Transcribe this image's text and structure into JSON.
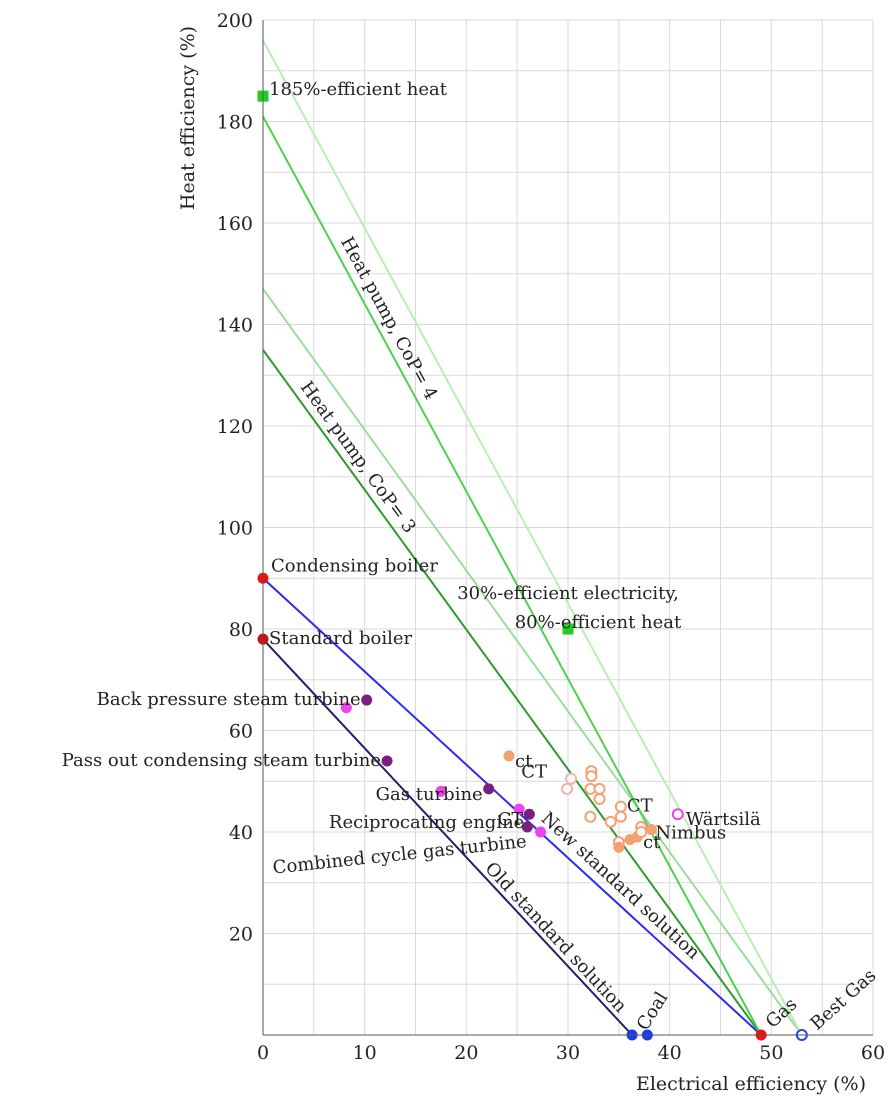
{
  "chart_data": {
    "type": "scatter",
    "xlabel": "Electrical efficiency (%)",
    "ylabel": "Heat efficiency (%)",
    "xlim": [
      0,
      60
    ],
    "ylim": [
      0,
      200
    ],
    "x_ticks": [
      0,
      10,
      20,
      30,
      40,
      50,
      60
    ],
    "y_ticks": [
      20,
      40,
      60,
      80,
      100,
      120,
      140,
      160,
      180,
      200
    ],
    "grid": true,
    "lines": [
      {
        "label": "Old standard solution",
        "color": "#20206a",
        "x1": 0,
        "y1": 78,
        "x2": 36.3,
        "y2": 0
      },
      {
        "label": "New standard solution",
        "color": "#2b2bf0",
        "x1": 0,
        "y1": 90,
        "x2": 49,
        "y2": 0
      },
      {
        "label": "Heat pump, CoP= 3",
        "color": "#2e9a2e",
        "x1": 0,
        "y1": 135,
        "x2": 49,
        "y2": 0
      },
      {
        "label": "",
        "color": "#9ddc9d",
        "x1": 0,
        "y1": 147,
        "x2": 53,
        "y2": 0
      },
      {
        "label": "Heat pump, CoP= 4",
        "color": "#4fd04f",
        "x1": 0,
        "y1": 181,
        "x2": 49,
        "y2": 0
      },
      {
        "label": "",
        "color": "#b9efb2",
        "x1": 0,
        "y1": 196,
        "x2": 53,
        "y2": 0
      }
    ],
    "points": [
      {
        "label": "Condensing boiler",
        "x": 0,
        "y": 90,
        "color": "#ee1111",
        "shape": "circle"
      },
      {
        "label": "Standard boiler",
        "x": 0,
        "y": 78,
        "color": "#cc1111",
        "shape": "circle"
      },
      {
        "label": "Gas",
        "x": 49,
        "y": 0,
        "color": "#ee1111",
        "shape": "circle"
      },
      {
        "label": "Best Gas",
        "x": 53,
        "y": 0,
        "color": "#2244ee",
        "shape": "open-circle"
      },
      {
        "label": "Coal",
        "x": 36.3,
        "y": 0,
        "color": "#1a3be8",
        "shape": "circle"
      },
      {
        "label": "",
        "x": 37.8,
        "y": 0,
        "color": "#1a3be8",
        "shape": "circle"
      },
      {
        "label": "185%-efficient heat",
        "x": 0,
        "y": 185,
        "color": "#22cc22",
        "shape": "square"
      },
      {
        "label": "30%-efficient electricity,\n80%-efficient heat",
        "x": 30,
        "y": 80,
        "color": "#22cc22",
        "shape": "square"
      },
      {
        "label": "Back pressure steam turbine",
        "x": 10.2,
        "y": 66,
        "color": "#7a1f80",
        "shape": "circle"
      },
      {
        "label": "",
        "x": 8.2,
        "y": 64.5,
        "color": "#ee44ee",
        "shape": "circle"
      },
      {
        "label": "Pass out condensing steam turbine",
        "x": 12.2,
        "y": 54,
        "color": "#7a1f80",
        "shape": "circle"
      },
      {
        "label": "Gas turbine",
        "x": 22.2,
        "y": 48.5,
        "color": "#7a1f80",
        "shape": "circle"
      },
      {
        "label": "",
        "x": 17.5,
        "y": 48,
        "color": "#ee44ee",
        "shape": "circle"
      },
      {
        "label": "Reciprocating engine",
        "x": 26,
        "y": 41,
        "color": "#7a1f80",
        "shape": "circle"
      },
      {
        "label": "CT",
        "x": 26.2,
        "y": 43.5,
        "color": "#7a1f80",
        "shape": "circle"
      },
      {
        "label": "",
        "x": 25.2,
        "y": 44.5,
        "color": "#ee44ee",
        "shape": "circle"
      },
      {
        "label": "Combined cycle gas turbine",
        "x": 27.3,
        "y": 40,
        "color": "#ee44ee",
        "shape": "circle"
      },
      {
        "label": "Wärtsilä",
        "x": 40.8,
        "y": 43.5,
        "color": "#ee44ee",
        "shape": "open-circle"
      },
      {
        "label": "ct",
        "x": 24.2,
        "y": 55,
        "color": "#f4a070",
        "shape": "circle"
      },
      {
        "label": "CT",
        "x": 30.3,
        "y": 50.5,
        "color": "#f5b0b0",
        "shape": "open-circle"
      },
      {
        "label": "",
        "x": 29.9,
        "y": 48.5,
        "color": "#f5b0b0",
        "shape": "open-circle"
      },
      {
        "label": "",
        "x": 32.3,
        "y": 52,
        "color": "#f4a070",
        "shape": "open-circle"
      },
      {
        "label": "",
        "x": 32.3,
        "y": 51,
        "color": "#f4a070",
        "shape": "open-circle"
      },
      {
        "label": "",
        "x": 32.2,
        "y": 48.5,
        "color": "#f4a070",
        "shape": "open-circle"
      },
      {
        "label": "",
        "x": 33.1,
        "y": 48.5,
        "color": "#f4a070",
        "shape": "open-circle"
      },
      {
        "label": "",
        "x": 33.1,
        "y": 46.5,
        "color": "#f4a070",
        "shape": "open-circle"
      },
      {
        "label": "",
        "x": 32.2,
        "y": 43,
        "color": "#f4a070",
        "shape": "open-circle"
      },
      {
        "label": "",
        "x": 34.2,
        "y": 42,
        "color": "#f4a070",
        "shape": "open-circle"
      },
      {
        "label": "CT",
        "x": 35.2,
        "y": 45,
        "color": "#f4a070",
        "shape": "open-circle"
      },
      {
        "label": "",
        "x": 35.2,
        "y": 43,
        "color": "#f4a070",
        "shape": "open-circle"
      },
      {
        "label": "",
        "x": 35,
        "y": 38,
        "color": "#f4a070",
        "shape": "open-circle"
      },
      {
        "label": "",
        "x": 35,
        "y": 37,
        "color": "#f4a070",
        "shape": "circle"
      },
      {
        "label": "",
        "x": 36.1,
        "y": 38.5,
        "color": "#f4a070",
        "shape": "circle"
      },
      {
        "label": "ct",
        "x": 36.8,
        "y": 39,
        "color": "#f4a070",
        "shape": "circle"
      },
      {
        "label": "Nimbus",
        "x": 38.2,
        "y": 40.5,
        "color": "#f4a070",
        "shape": "circle"
      },
      {
        "label": "",
        "x": 37.2,
        "y": 41,
        "color": "#f4a070",
        "shape": "open-circle"
      },
      {
        "label": "",
        "x": 37.2,
        "y": 40,
        "color": "#f4a070",
        "shape": "open-circle"
      }
    ]
  }
}
